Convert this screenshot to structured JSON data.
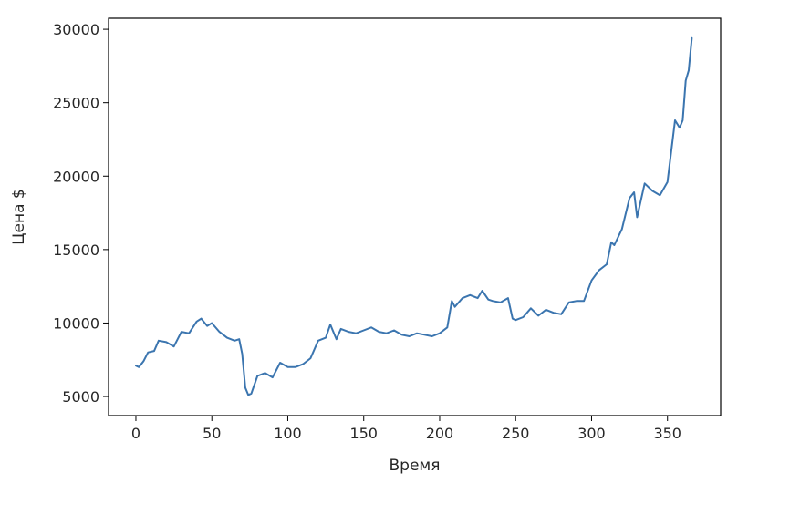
{
  "chart_data": {
    "type": "line",
    "title": "",
    "xlabel": "Время",
    "ylabel": "Цена $",
    "xlim": [
      -18,
      385
    ],
    "ylim": [
      3700,
      30750
    ],
    "xticks": [
      0,
      50,
      100,
      150,
      200,
      250,
      300,
      350
    ],
    "yticks": [
      5000,
      10000,
      15000,
      20000,
      25000,
      30000
    ],
    "grid": false,
    "line_color": "#3b75af",
    "series": [
      {
        "x": [
          0,
          2,
          5,
          8,
          12,
          15,
          20,
          25,
          30,
          35,
          40,
          43,
          47,
          50,
          55,
          60,
          65,
          68,
          70,
          72,
          74,
          76,
          80,
          85,
          90,
          95,
          100,
          105,
          110,
          115,
          120,
          125,
          128,
          132,
          135,
          140,
          145,
          150,
          155,
          160,
          165,
          170,
          175,
          180,
          185,
          190,
          195,
          200,
          205,
          208,
          210,
          215,
          220,
          225,
          228,
          232,
          235,
          240,
          245,
          248,
          250,
          255,
          260,
          265,
          270,
          275,
          280,
          285,
          290,
          295,
          300,
          305,
          310,
          313,
          315,
          320,
          325,
          328,
          330,
          335,
          340,
          345,
          350,
          355,
          358,
          360,
          362,
          364,
          366
        ],
        "y": [
          7100,
          7000,
          7400,
          8000,
          8100,
          8800,
          8700,
          8400,
          9400,
          9300,
          10100,
          10300,
          9800,
          10000,
          9400,
          9000,
          8800,
          8900,
          7900,
          5600,
          5100,
          5200,
          6400,
          6600,
          6300,
          7300,
          7000,
          7000,
          7200,
          7600,
          8800,
          9000,
          9900,
          8900,
          9600,
          9400,
          9300,
          9500,
          9700,
          9400,
          9300,
          9500,
          9200,
          9100,
          9300,
          9200,
          9100,
          9300,
          9700,
          11500,
          11100,
          11700,
          11900,
          11700,
          12200,
          11600,
          11500,
          11400,
          11700,
          10300,
          10200,
          10400,
          11000,
          10500,
          10900,
          10700,
          10600,
          11400,
          11500,
          11500,
          12900,
          13600,
          14000,
          15500,
          15300,
          16400,
          18500,
          18900,
          17200,
          19500,
          19000,
          18700,
          19600,
          23800,
          23300,
          23800,
          26500,
          27200,
          29400
        ]
      }
    ]
  }
}
